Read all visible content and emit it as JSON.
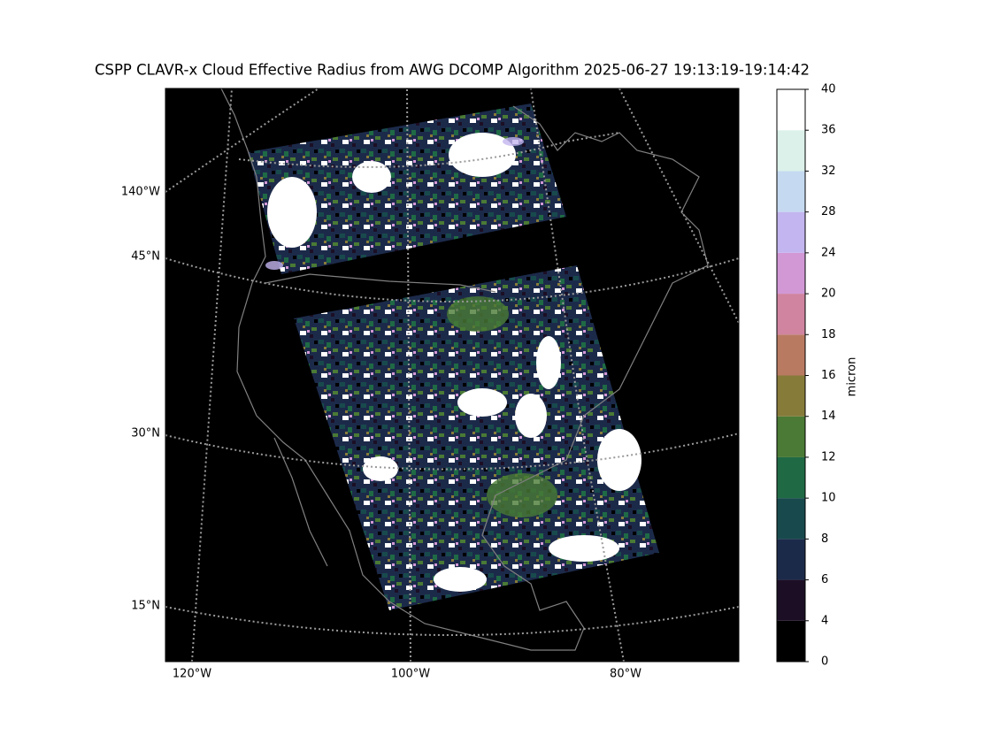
{
  "title": "CSPP CLAVR-x Cloud Effective Radius from AWG DCOMP Algorithm 2025-06-27 19:13:19-19:14:42",
  "map": {
    "lat_labels": [
      "45°N",
      "30°N",
      "15°N"
    ],
    "lon_labels_left": [
      "140°W"
    ],
    "lon_labels_bottom": [
      "120°W",
      "100°W",
      "80°W"
    ]
  },
  "colorbar": {
    "label": "micron",
    "ticks": [
      0,
      4,
      6,
      8,
      10,
      12,
      14,
      16,
      18,
      20,
      24,
      28,
      32,
      36,
      40
    ],
    "colors": [
      "#000000",
      "#1c0f25",
      "#1c2a4a",
      "#184a4d",
      "#1f6a45",
      "#4a7a35",
      "#877b3a",
      "#b97a62",
      "#d084a0",
      "#d298d6",
      "#c3b5ef",
      "#c5daf1",
      "#dbf1ea",
      "#ffffff"
    ]
  }
}
